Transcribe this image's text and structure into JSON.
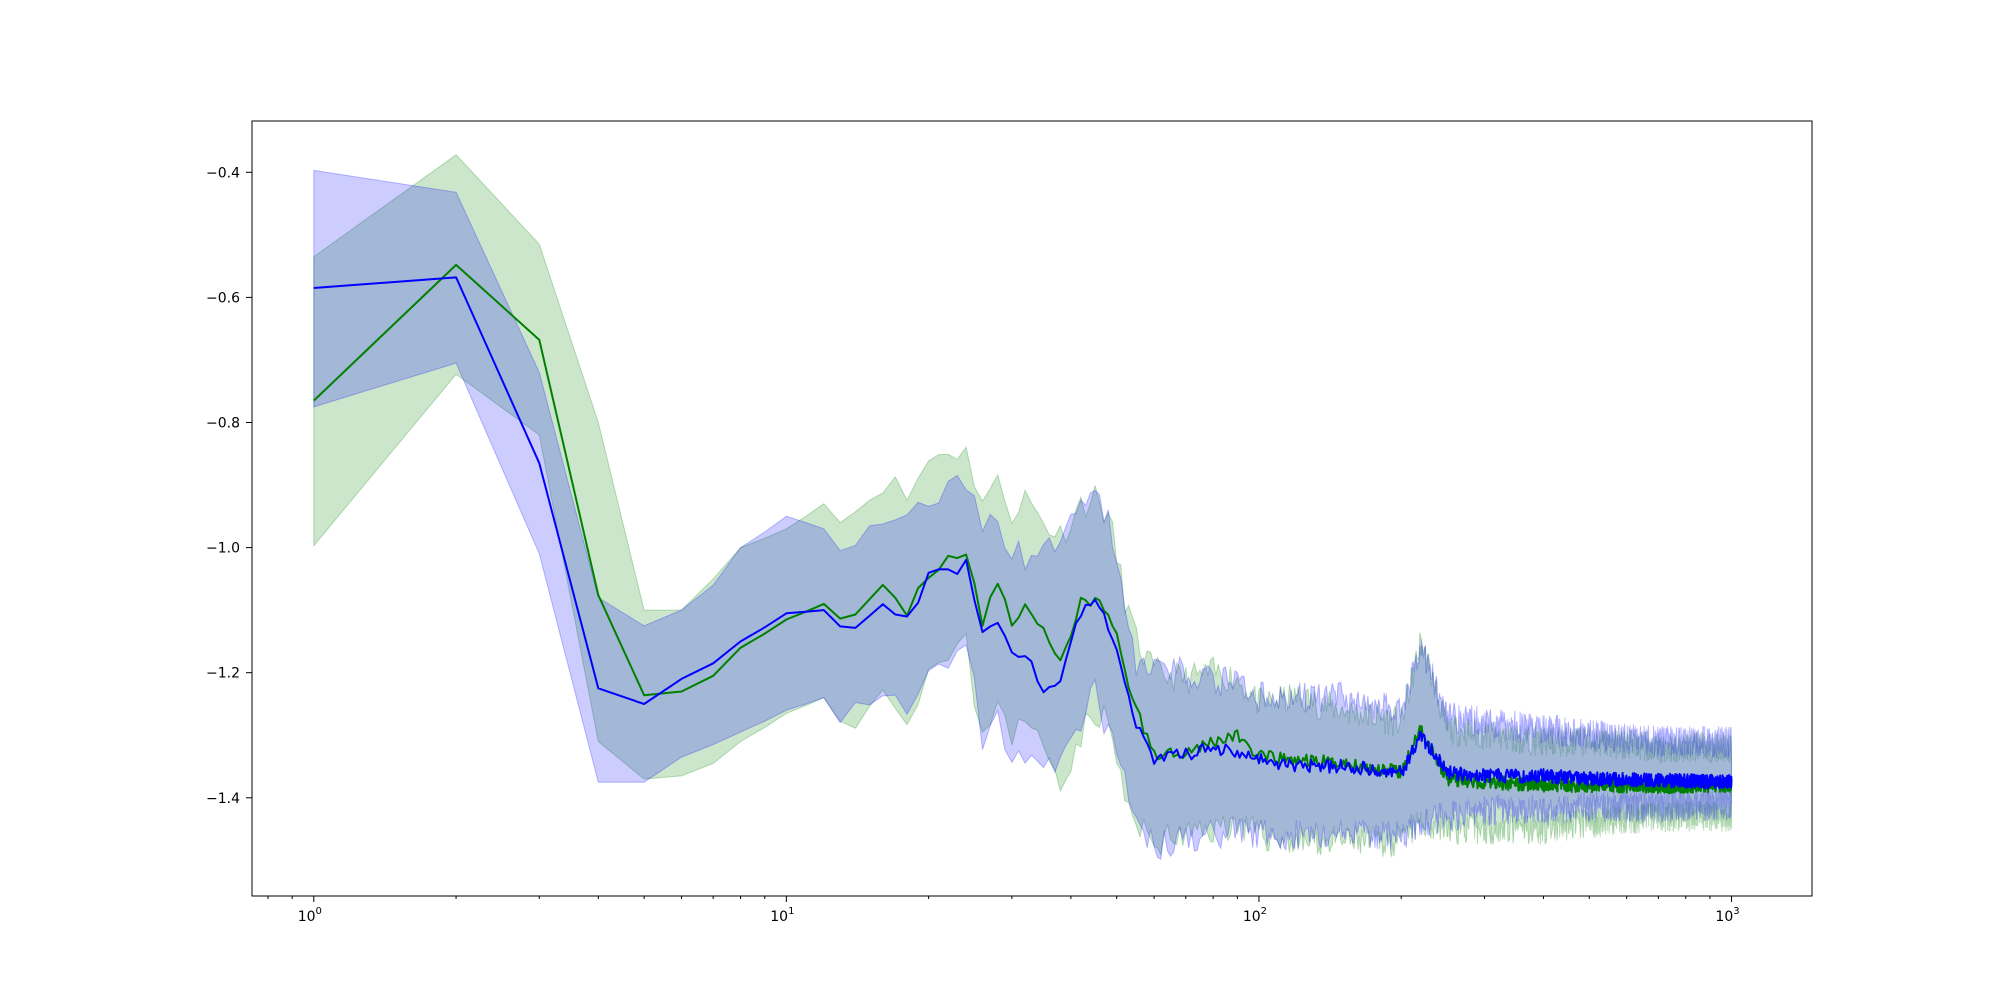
{
  "chart_data": {
    "type": "line",
    "title": "",
    "xlabel": "",
    "ylabel": "",
    "xscale": "log",
    "xlim": [
      0.74,
      1480
    ],
    "ylim": [
      -1.557,
      -0.318
    ],
    "grid": false,
    "legend": "none",
    "x_ticks": [
      {
        "value": 1,
        "label": "10",
        "exp": "0"
      },
      {
        "value": 10,
        "label": "10",
        "exp": "1"
      },
      {
        "value": 100,
        "label": "10",
        "exp": "2"
      },
      {
        "value": 1000,
        "label": "10",
        "exp": "3"
      }
    ],
    "y_ticks": [
      {
        "value": -0.4,
        "label": "−0.4"
      },
      {
        "value": -0.6,
        "label": "−0.6"
      },
      {
        "value": -0.8,
        "label": "−0.8"
      },
      {
        "value": -1.0,
        "label": "−1.0"
      },
      {
        "value": -1.2,
        "label": "−1.2"
      },
      {
        "value": -1.4,
        "label": "−1.4"
      }
    ],
    "series": [
      {
        "color": "#008000",
        "band_color": "#008000",
        "x": [
          1,
          2,
          3,
          4,
          5,
          6,
          7,
          8,
          10,
          12,
          14,
          16,
          18,
          20,
          22,
          24,
          26,
          28,
          30,
          32,
          35,
          38,
          42,
          45,
          48,
          52,
          55,
          60,
          70,
          80,
          90,
          100,
          120,
          150,
          200,
          220,
          250,
          300,
          400,
          500,
          700,
          1000
        ],
        "y": [
          -0.765,
          -0.548,
          -0.668,
          -1.076,
          -1.236,
          -1.23,
          -1.205,
          -1.16,
          -1.115,
          -1.09,
          -1.115,
          -1.07,
          -1.1,
          -1.04,
          -1.015,
          -1.005,
          -1.12,
          -1.06,
          -1.12,
          -1.09,
          -1.135,
          -1.18,
          -1.09,
          -1.085,
          -1.1,
          -1.195,
          -1.26,
          -1.33,
          -1.325,
          -1.31,
          -1.3,
          -1.335,
          -1.34,
          -1.345,
          -1.36,
          -1.29,
          -1.37,
          -1.375,
          -1.38,
          -1.38,
          -1.382,
          -1.38
        ],
        "upper": [
          -0.535,
          -0.372,
          -0.515,
          -0.8,
          -1.1,
          -1.1,
          -1.05,
          -1.0,
          -0.97,
          -0.93,
          -0.94,
          -0.89,
          -0.92,
          -0.86,
          -0.84,
          -0.85,
          -0.92,
          -0.9,
          -0.94,
          -0.92,
          -0.96,
          -0.98,
          -0.93,
          -0.92,
          -0.95,
          -1.08,
          -1.15,
          -1.2,
          -1.21,
          -1.2,
          -1.21,
          -1.25,
          -1.24,
          -1.26,
          -1.28,
          -1.15,
          -1.29,
          -1.3,
          -1.31,
          -1.31,
          -1.32,
          -1.32
        ],
        "lower": [
          -0.997,
          -0.723,
          -0.82,
          -1.31,
          -1.37,
          -1.365,
          -1.345,
          -1.31,
          -1.265,
          -1.24,
          -1.265,
          -1.23,
          -1.26,
          -1.2,
          -1.18,
          -1.16,
          -1.31,
          -1.23,
          -1.3,
          -1.28,
          -1.32,
          -1.37,
          -1.3,
          -1.26,
          -1.28,
          -1.4,
          -1.45,
          -1.47,
          -1.46,
          -1.45,
          -1.44,
          -1.46,
          -1.47,
          -1.47,
          -1.47,
          -1.44,
          -1.45,
          -1.45,
          -1.45,
          -1.44,
          -1.43,
          -1.43
        ]
      },
      {
        "color": "#0000ff",
        "band_color": "#0000ff",
        "x": [
          1,
          2,
          3,
          4,
          5,
          6,
          7,
          8,
          10,
          12,
          14,
          16,
          18,
          20,
          22,
          24,
          26,
          28,
          30,
          32,
          35,
          38,
          42,
          45,
          48,
          52,
          55,
          60,
          70,
          80,
          90,
          100,
          120,
          150,
          200,
          220,
          250,
          300,
          400,
          500,
          700,
          1000
        ],
        "y": [
          -0.585,
          -0.568,
          -0.865,
          -1.225,
          -1.25,
          -1.21,
          -1.185,
          -1.15,
          -1.105,
          -1.1,
          -1.13,
          -1.1,
          -1.12,
          -1.05,
          -1.04,
          -1.03,
          -1.14,
          -1.12,
          -1.165,
          -1.17,
          -1.23,
          -1.21,
          -1.1,
          -1.075,
          -1.13,
          -1.21,
          -1.28,
          -1.34,
          -1.33,
          -1.32,
          -1.325,
          -1.34,
          -1.35,
          -1.35,
          -1.36,
          -1.3,
          -1.36,
          -1.365,
          -1.365,
          -1.37,
          -1.372,
          -1.375
        ],
        "upper": [
          -0.397,
          -0.432,
          -0.72,
          -1.08,
          -1.125,
          -1.1,
          -1.06,
          -1.0,
          -0.95,
          -0.97,
          -0.99,
          -0.95,
          -0.97,
          -0.92,
          -0.91,
          -0.9,
          -0.98,
          -0.96,
          -1.0,
          -1.02,
          -1.0,
          -0.99,
          -0.93,
          -0.92,
          -0.96,
          -1.1,
          -1.18,
          -1.2,
          -1.2,
          -1.21,
          -1.22,
          -1.24,
          -1.24,
          -1.24,
          -1.26,
          -1.16,
          -1.27,
          -1.28,
          -1.29,
          -1.3,
          -1.31,
          -1.31
        ],
        "lower": [
          -0.775,
          -0.705,
          -1.01,
          -1.375,
          -1.375,
          -1.335,
          -1.315,
          -1.295,
          -1.26,
          -1.24,
          -1.27,
          -1.25,
          -1.27,
          -1.19,
          -1.17,
          -1.16,
          -1.3,
          -1.28,
          -1.33,
          -1.32,
          -1.36,
          -1.35,
          -1.27,
          -1.23,
          -1.3,
          -1.38,
          -1.44,
          -1.48,
          -1.47,
          -1.46,
          -1.45,
          -1.46,
          -1.46,
          -1.46,
          -1.46,
          -1.44,
          -1.43,
          -1.42,
          -1.42,
          -1.415,
          -1.415,
          -1.41
        ]
      }
    ]
  }
}
